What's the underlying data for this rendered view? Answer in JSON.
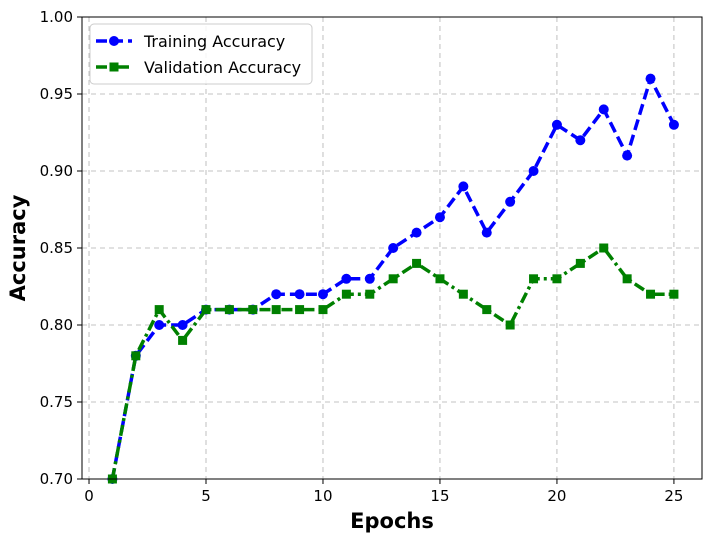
{
  "chart_data": {
    "type": "line",
    "title": "",
    "xlabel": "Epochs",
    "ylabel": "Accuracy",
    "xlim": [
      -0.3,
      26.2
    ],
    "ylim": [
      0.7,
      1.0
    ],
    "x_ticks": [
      0,
      5,
      10,
      15,
      20,
      25
    ],
    "y_ticks": [
      0.7,
      0.75,
      0.8,
      0.85,
      0.9,
      0.95,
      1.0
    ],
    "x_tick_labels": [
      "0",
      "5",
      "10",
      "15",
      "20",
      "25"
    ],
    "y_tick_labels": [
      "0.70",
      "0.75",
      "0.80",
      "0.85",
      "0.90",
      "0.95",
      "1.00"
    ],
    "grid": true,
    "legend_position": "top-left",
    "x": [
      1,
      2,
      3,
      4,
      5,
      6,
      7,
      8,
      9,
      10,
      11,
      12,
      13,
      14,
      15,
      16,
      17,
      18,
      19,
      20,
      21,
      22,
      23,
      24,
      25
    ],
    "series": [
      {
        "name": "Training Accuracy",
        "color": "#0000ff",
        "line_style": "dashed",
        "marker": "circle",
        "values": [
          0.7,
          0.78,
          0.8,
          0.8,
          0.81,
          0.81,
          0.81,
          0.82,
          0.82,
          0.82,
          0.83,
          0.83,
          0.85,
          0.86,
          0.87,
          0.89,
          0.86,
          0.88,
          0.9,
          0.93,
          0.92,
          0.94,
          0.91,
          0.96,
          0.93
        ]
      },
      {
        "name": "Validation Accuracy",
        "color": "#008000",
        "line_style": "dashdot",
        "marker": "square",
        "values": [
          0.7,
          0.78,
          0.81,
          0.79,
          0.81,
          0.81,
          0.81,
          0.81,
          0.81,
          0.81,
          0.82,
          0.82,
          0.83,
          0.84,
          0.83,
          0.82,
          0.81,
          0.8,
          0.83,
          0.83,
          0.84,
          0.85,
          0.83,
          0.82,
          0.82
        ]
      }
    ]
  }
}
